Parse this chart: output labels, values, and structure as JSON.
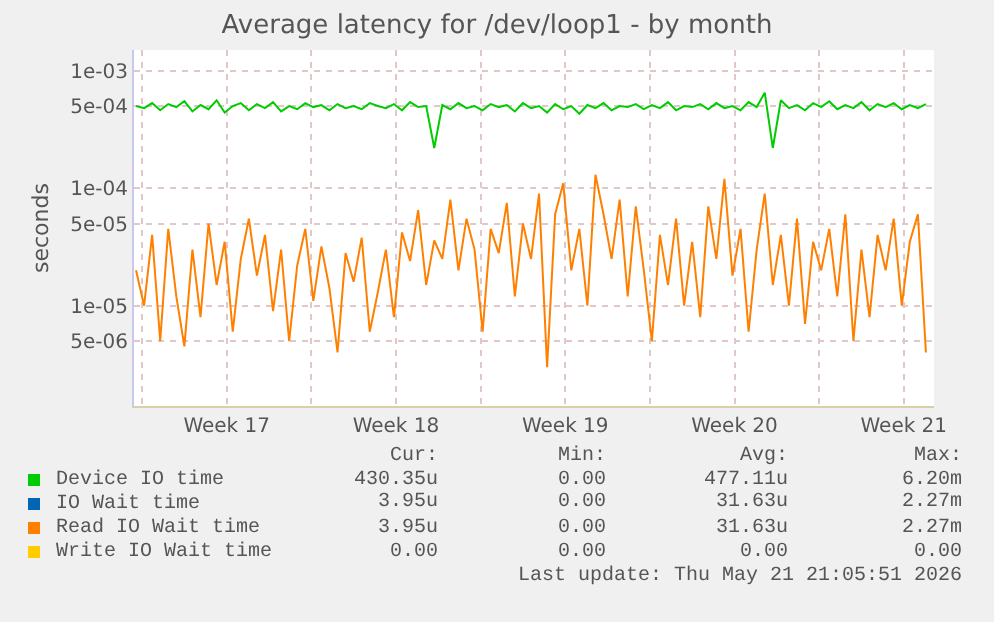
{
  "chart_data": {
    "type": "line",
    "title": "Average latency for /dev/loop1 - by month",
    "ylabel": "seconds",
    "log": "y",
    "grid": true,
    "legend": "bottom",
    "marker": "none",
    "line_style": "solid",
    "ylim": [
      1.4e-06,
      0.0015
    ],
    "yticks": [
      {
        "value": 0.001,
        "label": "1e-03"
      },
      {
        "value": 0.0005,
        "label": "5e-04"
      },
      {
        "value": 0.0001,
        "label": "1e-04"
      },
      {
        "value": 5e-05,
        "label": "5e-05"
      },
      {
        "value": 1e-05,
        "label": "1e-05"
      },
      {
        "value": 5e-06,
        "label": "5e-06"
      }
    ],
    "xlim": [
      "2026-04-19T16:00",
      "2026-05-22T18:00"
    ],
    "xticks": [
      {
        "value": "2026-04-20",
        "label": null
      },
      {
        "value": "2026-04-23T12:00",
        "label": "Week 17"
      },
      {
        "value": "2026-04-27",
        "label": null
      },
      {
        "value": "2026-04-30T12:00",
        "label": "Week 18"
      },
      {
        "value": "2026-05-04",
        "label": null
      },
      {
        "value": "2026-05-07T12:00",
        "label": "Week 19"
      },
      {
        "value": "2026-05-11",
        "label": null
      },
      {
        "value": "2026-05-14T12:00",
        "label": "Week 20"
      },
      {
        "value": "2026-05-18",
        "label": null
      },
      {
        "value": "2026-05-21T12:00",
        "label": "Week 21"
      }
    ],
    "x": [
      "2026-04-19T18:00",
      "2026-04-20T02:00",
      "2026-04-20T10:00",
      "2026-04-20T18:00",
      "2026-04-21T02:00",
      "2026-04-21T10:00",
      "2026-04-21T18:00",
      "2026-04-22T02:00",
      "2026-04-22T10:00",
      "2026-04-22T18:00",
      "2026-04-23T02:00",
      "2026-04-23T10:00",
      "2026-04-23T18:00",
      "2026-04-24T02:00",
      "2026-04-24T10:00",
      "2026-04-24T18:00",
      "2026-04-25T02:00",
      "2026-04-25T10:00",
      "2026-04-25T18:00",
      "2026-04-26T02:00",
      "2026-04-26T10:00",
      "2026-04-26T18:00",
      "2026-04-27T02:00",
      "2026-04-27T10:00",
      "2026-04-27T18:00",
      "2026-04-28T02:00",
      "2026-04-28T10:00",
      "2026-04-28T18:00",
      "2026-04-29T02:00",
      "2026-04-29T10:00",
      "2026-04-29T18:00",
      "2026-04-30T02:00",
      "2026-04-30T10:00",
      "2026-04-30T18:00",
      "2026-05-01T02:00",
      "2026-05-01T10:00",
      "2026-05-01T18:00",
      "2026-05-02T02:00",
      "2026-05-02T10:00",
      "2026-05-02T18:00",
      "2026-05-03T02:00",
      "2026-05-03T10:00",
      "2026-05-03T18:00",
      "2026-05-04T02:00",
      "2026-05-04T10:00",
      "2026-05-04T18:00",
      "2026-05-05T02:00",
      "2026-05-05T10:00",
      "2026-05-05T18:00",
      "2026-05-06T02:00",
      "2026-05-06T10:00",
      "2026-05-06T18:00",
      "2026-05-07T02:00",
      "2026-05-07T10:00",
      "2026-05-07T18:00",
      "2026-05-08T02:00",
      "2026-05-08T10:00",
      "2026-05-08T18:00",
      "2026-05-09T02:00",
      "2026-05-09T10:00",
      "2026-05-09T18:00",
      "2026-05-10T02:00",
      "2026-05-10T10:00",
      "2026-05-10T18:00",
      "2026-05-11T02:00",
      "2026-05-11T10:00",
      "2026-05-11T18:00",
      "2026-05-12T02:00",
      "2026-05-12T10:00",
      "2026-05-12T18:00",
      "2026-05-13T02:00",
      "2026-05-13T10:00",
      "2026-05-13T18:00",
      "2026-05-14T02:00",
      "2026-05-14T10:00",
      "2026-05-14T18:00",
      "2026-05-15T02:00",
      "2026-05-15T10:00",
      "2026-05-15T18:00",
      "2026-05-16T02:00",
      "2026-05-16T10:00",
      "2026-05-16T18:00",
      "2026-05-17T02:00",
      "2026-05-17T10:00",
      "2026-05-17T18:00",
      "2026-05-18T02:00",
      "2026-05-18T10:00",
      "2026-05-18T18:00",
      "2026-05-19T02:00",
      "2026-05-19T10:00",
      "2026-05-19T18:00",
      "2026-05-20T02:00",
      "2026-05-20T10:00",
      "2026-05-20T18:00",
      "2026-05-21T02:00",
      "2026-05-21T10:00",
      "2026-05-21T18:00",
      "2026-05-22T02:00",
      "2026-05-22T10:00"
    ],
    "series": [
      {
        "name": "Device IO time",
        "color": "#00cc00",
        "values": [
          0.0005,
          0.00048,
          0.00053,
          0.00046,
          0.00052,
          0.00049,
          0.00055,
          0.00045,
          0.00051,
          0.00047,
          0.00056,
          0.00044,
          0.0005,
          0.00053,
          0.00046,
          0.00052,
          0.00048,
          0.00054,
          0.00045,
          0.0005,
          0.00047,
          0.00053,
          0.00049,
          0.00051,
          0.00046,
          0.00052,
          0.00048,
          0.0005,
          0.00047,
          0.00053,
          0.0005,
          0.00048,
          0.00052,
          0.00046,
          0.00054,
          0.00049,
          0.0005,
          0.00022,
          0.00051,
          0.00047,
          0.00053,
          0.00048,
          0.0005,
          0.00046,
          0.00052,
          0.00049,
          0.00051,
          0.00045,
          0.00053,
          0.00048,
          0.0005,
          0.00044,
          0.00052,
          0.00047,
          0.0005,
          0.00043,
          0.00051,
          0.00048,
          0.00053,
          0.00046,
          0.0005,
          0.00049,
          0.00052,
          0.00047,
          0.00051,
          0.00048,
          0.00054,
          0.00046,
          0.0005,
          0.00049,
          0.00052,
          0.00047,
          0.00053,
          0.00048,
          0.0005,
          0.00046,
          0.00054,
          0.00049,
          0.00065,
          0.00022,
          0.00056,
          0.00048,
          0.00051,
          0.00046,
          0.00053,
          0.00049,
          0.00055,
          0.00047,
          0.00051,
          0.00048,
          0.00054,
          0.00046,
          0.00052,
          0.00049,
          0.00053,
          0.00047,
          0.00051,
          0.00048,
          0.00052
        ]
      },
      {
        "name": "IO Wait time",
        "color": "#0066b3",
        "values": [
          null,
          null,
          null,
          null,
          null,
          null,
          null,
          null,
          null,
          null,
          null,
          null,
          null,
          null,
          null,
          null,
          null,
          null,
          null,
          null,
          null,
          null,
          null,
          null,
          null,
          null,
          null,
          null,
          null,
          null,
          null,
          null,
          null,
          null,
          null,
          null,
          null,
          null,
          null,
          null,
          null,
          null,
          null,
          null,
          null,
          null,
          null,
          null,
          null,
          null,
          null,
          null,
          null,
          null,
          null,
          null,
          null,
          null,
          null,
          null,
          null,
          null,
          null,
          null,
          null,
          null,
          null,
          null,
          null,
          null,
          null,
          null,
          null,
          null,
          null,
          null,
          null,
          null,
          null,
          null,
          null,
          null,
          null,
          null,
          null,
          null,
          null,
          null,
          null,
          null,
          null,
          null,
          null,
          null,
          null,
          null,
          null,
          null,
          null
        ]
      },
      {
        "name": "Read IO Wait time",
        "color": "#ff8000",
        "values": [
          2e-05,
          1e-05,
          4e-05,
          5e-06,
          4.5e-05,
          1.2e-05,
          4.5e-06,
          3e-05,
          8e-06,
          5e-05,
          1.5e-05,
          3.5e-05,
          6e-06,
          2.5e-05,
          5.5e-05,
          1.8e-05,
          4e-05,
          9e-06,
          3e-05,
          5e-06,
          2.2e-05,
          4.5e-05,
          1.1e-05,
          3.2e-05,
          1.4e-05,
          4e-06,
          2.8e-05,
          1.6e-05,
          3.8e-05,
          6e-06,
          1.3e-05,
          3e-05,
          8e-06,
          4.2e-05,
          2.4e-05,
          6.5e-05,
          1.5e-05,
          3.6e-05,
          2.5e-05,
          8e-05,
          2e-05,
          5.5e-05,
          3e-05,
          6e-06,
          4.5e-05,
          2.8e-05,
          7.5e-05,
          1.2e-05,
          5e-05,
          2.5e-05,
          9e-05,
          3e-06,
          6e-05,
          0.00011,
          2e-05,
          4.5e-05,
          1e-05,
          0.00013,
          6e-05,
          2.5e-05,
          8e-05,
          1.2e-05,
          7e-05,
          2e-05,
          5e-06,
          4e-05,
          1.5e-05,
          5.5e-05,
          1e-05,
          3.5e-05,
          8e-06,
          7e-05,
          2.5e-05,
          0.00012,
          1.8e-05,
          4.5e-05,
          6e-06,
          3e-05,
          9e-05,
          1.5e-05,
          4e-05,
          1e-05,
          5.5e-05,
          7e-06,
          3.5e-05,
          2e-05,
          4.5e-05,
          1.2e-05,
          6e-05,
          5e-06,
          3e-05,
          8e-06,
          4e-05,
          2e-05,
          5.5e-05,
          1e-05,
          3.5e-05,
          6e-05,
          4e-06
        ]
      },
      {
        "name": "Write IO Wait time",
        "color": "#ffcc00",
        "values": [
          null,
          null,
          null,
          null,
          null,
          null,
          null,
          null,
          null,
          null,
          null,
          null,
          null,
          null,
          null,
          null,
          null,
          null,
          null,
          null,
          null,
          null,
          null,
          null,
          null,
          null,
          null,
          null,
          null,
          null,
          null,
          null,
          null,
          null,
          null,
          null,
          null,
          null,
          null,
          null,
          null,
          null,
          null,
          null,
          null,
          null,
          null,
          null,
          null,
          null,
          null,
          null,
          null,
          null,
          null,
          null,
          null,
          null,
          null,
          null,
          null,
          null,
          null,
          null,
          null,
          null,
          null,
          null,
          null,
          null,
          null,
          null,
          null,
          null,
          null,
          null,
          null,
          null,
          null,
          null,
          null,
          null,
          null,
          null,
          null,
          null,
          null,
          null,
          null,
          null,
          null,
          null,
          null,
          null,
          null,
          null,
          null,
          null,
          null
        ]
      }
    ],
    "annotations": [
      "Cur:",
      "Min:",
      "Avg:",
      "Max:",
      "430.35u",
      "0.00",
      "477.11u",
      "6.20m",
      "3.95u",
      "0.00",
      "31.63u",
      "2.27m",
      "3.95u",
      "0.00",
      "31.63u",
      "2.27m",
      "0.00",
      "0.00",
      "0.00",
      "0.00",
      "Last update: Thu May 21 21:05:51 2026"
    ]
  }
}
